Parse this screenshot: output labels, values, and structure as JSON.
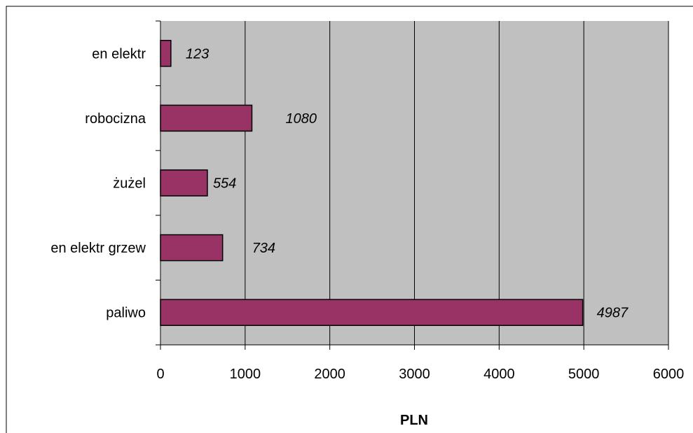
{
  "chart_data": {
    "type": "bar",
    "orientation": "horizontal",
    "categories": [
      "en elektr",
      "robocizna",
      "żużel",
      "en elektr grzew",
      "paliwo"
    ],
    "values": [
      123,
      1080,
      554,
      734,
      4987
    ],
    "data_labels": [
      "123",
      "1080",
      "554",
      "734",
      "4987"
    ],
    "xlabel": "PLN",
    "ylabel": "",
    "xlim": [
      0,
      6000
    ],
    "xticks": [
      0,
      1000,
      2000,
      3000,
      4000,
      5000,
      6000
    ],
    "grid": "vertical",
    "legend": "none",
    "colors": {
      "bar_fill": "#993366",
      "bar_stroke": "#000000",
      "plot_background": "#c0c0c0",
      "gridline": "#000000"
    }
  }
}
